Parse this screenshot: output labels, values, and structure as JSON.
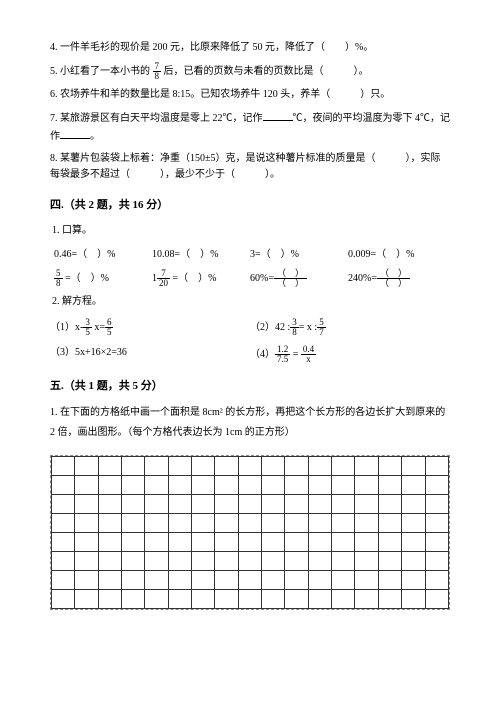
{
  "q4": "4. 一件羊毛衫的现价是 200 元，比原来降低了 50 元，降低了（　　）%。",
  "q5a": "5. 小红看了一本小书的",
  "q5b": "后，已看的页数与未看的页数比是（　　　）。",
  "q6": "6. 农场养牛和羊的数量比是 8:15。已知农场养牛 120 头，养羊（　　　）只。",
  "q7a": "7. 某旅游景区有白天平均温度是零上 22℃，记作",
  "q7b": "℃，夜间的平均温度为零下 4℃，记作",
  "q7c": "。",
  "q8a": "8. 某薯片包装袋上标着：净重（150±5）克，是说这种薯片标准的质量是（　　　），实际每袋最多不超过（　　　），最少不少于（　　　）。",
  "sec4": "四.（共 2 题，共 16 分）",
  "s1": "1. 口算。",
  "r1a": "0.46=（　）%",
  "r1b": "10.08=（　）%",
  "r1c": "3=（　）%",
  "r1d": "0.009=（　）%",
  "r2a_n": "5",
  "r2a_d": "8",
  "r2a_t": " =（　）%",
  "r2b_pre": "1",
  "r2b_n": "7",
  "r2b_d": "20",
  "r2b_t": " =（　）%",
  "r2c": "60%=",
  "r2d": "240%=",
  "s2": "2. 解方程。",
  "e1": "（1）x-",
  "e1n": "3",
  "e1d": "5",
  "e1m": " x=",
  "e1rn": "6",
  "e1rd": "5",
  "e2": "（2）42 :",
  "e2n": "3",
  "e2d": "8",
  "e2m": "= x :",
  "e2rn": "5",
  "e2rd": "7",
  "e3": "（3）5x+16×2=36",
  "e4": "（4）",
  "e4an": "1.2",
  "e4ad": "7.5",
  "e4eq": " = ",
  "e4bn": "0.4",
  "e4bd": "x",
  "sec5": "五.（共 1 题，共 5 分）",
  "q51": "1. 在下面的方格纸中画一个面积是 8cm² 的长方形，再把这个长方形的各边长扩大到原来的 2 倍，画出图形。（每个方格代表边长为 1cm 的正方形）",
  "frac78n": "7",
  "frac78d": "8",
  "pn": "（　）",
  "pd": "（　）",
  "grid": {
    "rows": 8,
    "cols": 17
  }
}
